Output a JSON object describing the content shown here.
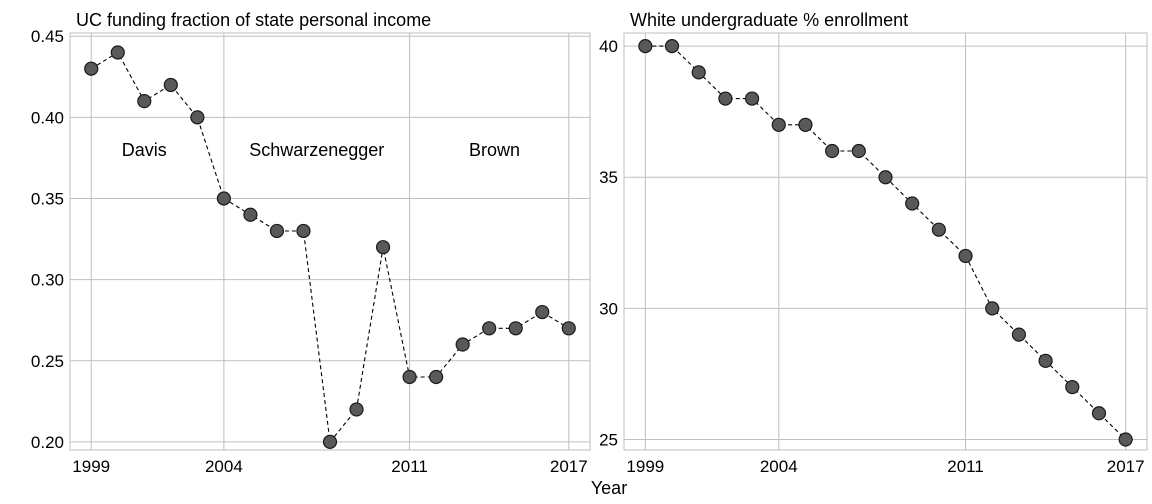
{
  "x_axis_label": "Year",
  "colors": {
    "point_fill": "#595959",
    "point_stroke": "#1a1a1a",
    "grid": "#bfbfbf",
    "line": "#000000"
  },
  "chart_data": [
    {
      "type": "scatter",
      "title": "UC funding fraction of state personal income",
      "xlabel": "Year",
      "ylabel": "",
      "xlim": [
        1998.2,
        2017.8
      ],
      "ylim": [
        0.195,
        0.452
      ],
      "xticks": [
        1999,
        2004,
        2011,
        2017
      ],
      "xtick_labels": [
        "1999",
        "2004",
        "2011",
        "2017"
      ],
      "yticks": [
        0.2,
        0.25,
        0.3,
        0.35,
        0.4,
        0.45
      ],
      "ytick_labels": [
        "0.20",
        "0.25",
        "0.30",
        "0.35",
        "0.40",
        "0.45"
      ],
      "grid": true,
      "line_style": "dashed",
      "x": [
        1999,
        2000,
        2001,
        2002,
        2003,
        2004,
        2005,
        2006,
        2007,
        2008,
        2009,
        2010,
        2011,
        2012,
        2013,
        2014,
        2015,
        2016,
        2017
      ],
      "y": [
        0.43,
        0.44,
        0.41,
        0.42,
        0.4,
        0.35,
        0.34,
        0.33,
        0.33,
        0.2,
        0.22,
        0.32,
        0.24,
        0.24,
        0.26,
        0.27,
        0.27,
        0.28,
        0.27
      ],
      "annotations": [
        {
          "text": "Davis",
          "x": 2001,
          "y": 0.38
        },
        {
          "text": "Schwarzenegger",
          "x": 2007.5,
          "y": 0.38
        },
        {
          "text": "Brown",
          "x": 2014.2,
          "y": 0.38
        }
      ]
    },
    {
      "type": "scatter",
      "title": "White undergraduate % enrollment",
      "xlabel": "Year",
      "ylabel": "",
      "xlim": [
        1998.2,
        2017.8
      ],
      "ylim": [
        24.6,
        40.5
      ],
      "xticks": [
        1999,
        2004,
        2011,
        2017
      ],
      "xtick_labels": [
        "1999",
        "2004",
        "2011",
        "2017"
      ],
      "yticks": [
        25,
        30,
        35,
        40
      ],
      "ytick_labels": [
        "25",
        "30",
        "35",
        "40"
      ],
      "grid": true,
      "line_style": "dashed",
      "x": [
        1999,
        2000,
        2001,
        2002,
        2003,
        2004,
        2005,
        2006,
        2007,
        2008,
        2009,
        2010,
        2011,
        2012,
        2013,
        2014,
        2015,
        2016,
        2017
      ],
      "y": [
        40,
        40,
        39,
        38,
        38,
        37,
        37,
        36,
        36,
        35,
        34,
        33,
        32,
        30,
        29,
        28,
        27,
        26,
        25
      ],
      "annotations": []
    }
  ]
}
